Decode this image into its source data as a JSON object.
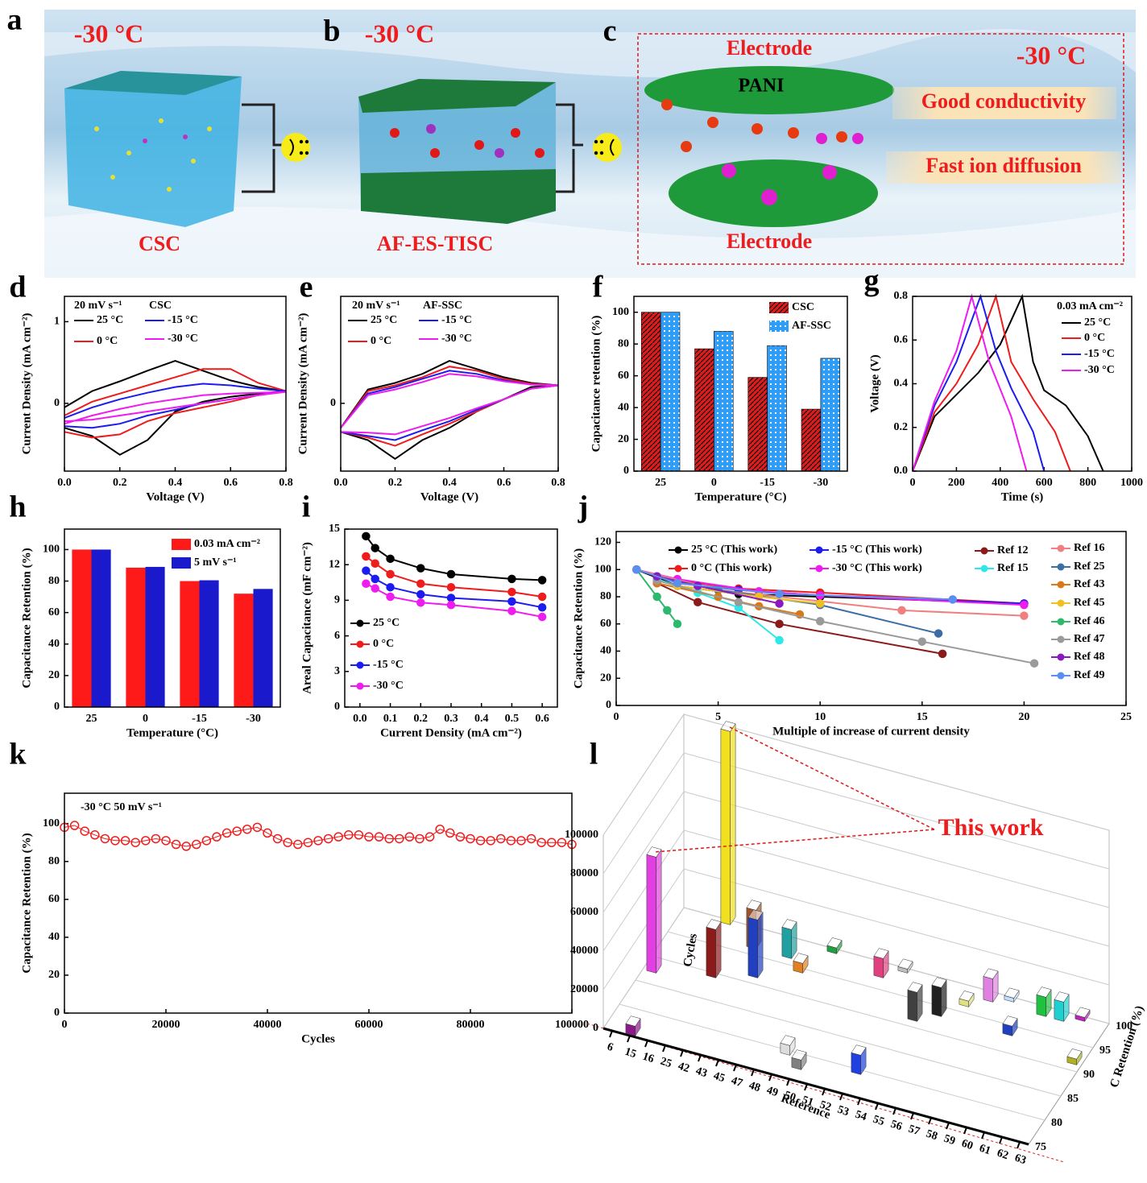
{
  "panel_labels": [
    "a",
    "b",
    "c",
    "d",
    "e",
    "f",
    "g",
    "h",
    "i",
    "j",
    "k",
    "l"
  ],
  "illustration": {
    "a": {
      "temperature": "-30 °C",
      "label": "CSC"
    },
    "b": {
      "temperature": "-30 °C",
      "label": "AF-ES-TISC"
    },
    "c": {
      "top_electrode": "Electrode",
      "polymer": "PANI",
      "temperature": "-30 °C",
      "feature_1": "Good conductivity",
      "feature_2": "Fast ion diffusion",
      "bottom_electrode": "Electrode"
    }
  },
  "chart_data": [
    {
      "type": "line",
      "x_label": "Voltage (V)",
      "y_label": "Current Density (mA cm⁻²)",
      "annotations": [
        "20 mV s⁻¹",
        "CSC"
      ],
      "x": [
        0,
        0.1,
        0.2,
        0.3,
        0.4,
        0.5,
        0.6,
        0.7,
        0.8,
        0.7,
        0.6,
        0.5,
        0.4,
        0.3,
        0.2,
        0.1,
        0
      ],
      "series": [
        {
          "name": "25 °C",
          "color": "#000000",
          "values": [
            -0.05,
            0.15,
            0.27,
            0.4,
            0.52,
            0.4,
            0.28,
            0.2,
            0.15,
            0.12,
            0.08,
            0.02,
            -0.1,
            -0.45,
            -0.63,
            -0.4,
            -0.3
          ]
        },
        {
          "name": "0 °C",
          "color": "#ee1c1c",
          "values": [
            -0.15,
            0.02,
            0.12,
            0.22,
            0.32,
            0.42,
            0.42,
            0.25,
            0.15,
            0.1,
            0.02,
            -0.05,
            -0.12,
            -0.22,
            -0.38,
            -0.42,
            -0.35
          ]
        },
        {
          "name": "-15 °C",
          "color": "#1c1cee",
          "values": [
            -0.18,
            -0.05,
            0.05,
            0.13,
            0.2,
            0.24,
            0.22,
            0.18,
            0.15,
            0.1,
            0.05,
            0,
            -0.08,
            -0.15,
            -0.25,
            -0.3,
            -0.28
          ]
        },
        {
          "name": "-30 °C",
          "color": "#ee1cee",
          "values": [
            -0.25,
            -0.15,
            -0.07,
            0,
            0.05,
            0.1,
            0.12,
            0.13,
            0.14,
            0.1,
            0.05,
            0,
            -0.05,
            -0.1,
            -0.15,
            -0.2,
            -0.22
          ]
        }
      ],
      "xlim": [
        0,
        0.8
      ],
      "xticks": [
        {
          "value": 0,
          "label": "0.0"
        },
        0.2,
        0.4,
        0.6,
        0.8
      ],
      "ylim": [
        -0.83,
        1.31
      ],
      "yticks": [
        0,
        1
      ]
    },
    {
      "type": "line",
      "x_label": "Voltage (V)",
      "y_label": "Current Density (mA cm⁻²)",
      "annotations": [
        "20 mV s⁻¹",
        "AF-SSC"
      ],
      "x": [
        0,
        0.1,
        0.2,
        0.3,
        0.4,
        0.5,
        0.6,
        0.7,
        0.8,
        0.7,
        0.6,
        0.5,
        0.4,
        0.3,
        0.2,
        0.1,
        0
      ],
      "series": [
        {
          "name": "25 °C",
          "color": "#000000",
          "values": [
            -0.3,
            0.17,
            0.25,
            0.36,
            0.52,
            0.42,
            0.32,
            0.25,
            0.22,
            0.2,
            0.05,
            -0.1,
            -0.3,
            -0.45,
            -0.68,
            -0.45,
            -0.35
          ]
        },
        {
          "name": "0 °C",
          "color": "#ee1c1c",
          "values": [
            -0.3,
            0.15,
            0.22,
            0.32,
            0.45,
            0.4,
            0.3,
            0.24,
            0.22,
            0.18,
            0.05,
            -0.1,
            -0.25,
            -0.38,
            -0.52,
            -0.42,
            -0.35
          ]
        },
        {
          "name": "-15 °C",
          "color": "#1c1cee",
          "values": [
            -0.3,
            0.12,
            0.2,
            0.3,
            0.4,
            0.36,
            0.28,
            0.23,
            0.22,
            0.18,
            0.05,
            -0.08,
            -0.22,
            -0.33,
            -0.45,
            -0.4,
            -0.35
          ]
        },
        {
          "name": "-30 °C",
          "color": "#ee1cee",
          "values": [
            -0.3,
            0.1,
            0.17,
            0.26,
            0.36,
            0.33,
            0.27,
            0.23,
            0.22,
            0.18,
            0.05,
            -0.06,
            -0.18,
            -0.28,
            -0.38,
            -0.36,
            -0.35
          ]
        }
      ],
      "xlim": [
        0,
        0.8
      ],
      "xticks": [
        {
          "value": 0,
          "label": "0.0"
        },
        0.2,
        0.4,
        0.6,
        0.8
      ],
      "ylim": [
        -0.83,
        1.31
      ],
      "yticks": [
        0
      ]
    },
    {
      "type": "bar",
      "x_label": "Temperature (°C)",
      "y_label": "Capacitance retention (%)",
      "hatch": true,
      "categories": [
        "25",
        "0",
        "-15",
        "-30"
      ],
      "series": [
        {
          "name": "CSC",
          "color": "#d81e1e",
          "values": [
            100,
            77,
            59,
            39
          ]
        },
        {
          "name": "AF-SSC",
          "color": "#2f9cf5",
          "values": [
            100,
            88,
            79,
            71
          ]
        }
      ],
      "ylim": [
        0,
        110
      ],
      "yticks": [
        0,
        20,
        40,
        60,
        80,
        100
      ]
    },
    {
      "type": "line",
      "x_label": "Time (s)",
      "y_label": "Voltage (V)",
      "legend_title": "0.03 mA cm⁻²",
      "series": [
        {
          "name": "25 °C",
          "color": "#000000",
          "x": [
            0,
            100,
            200,
            300,
            400,
            500,
            550,
            600,
            700,
            800,
            870
          ],
          "values": [
            0,
            0.25,
            0.35,
            0.45,
            0.58,
            0.8,
            0.5,
            0.37,
            0.3,
            0.16,
            0
          ]
        },
        {
          "name": "0 °C",
          "color": "#ee1c1c",
          "x": [
            0,
            100,
            200,
            300,
            380,
            450,
            550,
            650,
            720
          ],
          "values": [
            0,
            0.27,
            0.4,
            0.58,
            0.8,
            0.5,
            0.33,
            0.18,
            0
          ]
        },
        {
          "name": "-15 °C",
          "color": "#1c1cee",
          "x": [
            0,
            100,
            200,
            310,
            380,
            450,
            550,
            600
          ],
          "values": [
            0,
            0.3,
            0.5,
            0.8,
            0.55,
            0.38,
            0.18,
            0
          ]
        },
        {
          "name": "-30 °C",
          "color": "#ee1cee",
          "x": [
            0,
            100,
            200,
            270,
            350,
            450,
            520
          ],
          "values": [
            0,
            0.32,
            0.55,
            0.8,
            0.5,
            0.25,
            0
          ]
        }
      ],
      "xlim": [
        0,
        1000
      ],
      "xticks": [
        0,
        200,
        400,
        600,
        800,
        1000
      ],
      "ylim": [
        0,
        0.8
      ],
      "yticks": [
        {
          "value": 0,
          "label": "0.0"
        },
        0.2,
        0.4,
        0.6,
        0.8
      ]
    },
    {
      "type": "bar",
      "x_label": "Temperature (°C)",
      "y_label": "Capacitance Retention (%)",
      "categories": [
        "25",
        "0",
        "-15",
        "-30"
      ],
      "series": [
        {
          "name": "0.03 mA cm⁻²",
          "color": "#ff1a1a",
          "values": [
            100,
            88.5,
            80,
            72
          ]
        },
        {
          "name": "5 mV s⁻¹",
          "color": "#1a1acc",
          "values": [
            100,
            89,
            80.5,
            75
          ]
        }
      ],
      "ylim": [
        0,
        113
      ],
      "yticks": [
        0,
        20,
        40,
        60,
        80,
        100
      ]
    },
    {
      "type": "line",
      "x_label": "Current Density (mA cm⁻²)",
      "y_label": "Areal Capacitance (mF cm⁻²)",
      "markers": "filled",
      "x": [
        0.02,
        0.05,
        0.1,
        0.2,
        0.3,
        0.5,
        0.6
      ],
      "series": [
        {
          "name": "25 °C",
          "color": "#000000",
          "values": [
            14.4,
            13.4,
            12.5,
            11.7,
            11.2,
            10.8,
            10.7
          ]
        },
        {
          "name": "0 °C",
          "color": "#ee1c1c",
          "values": [
            12.7,
            12.1,
            11.2,
            10.4,
            10.1,
            9.7,
            9.3
          ]
        },
        {
          "name": "-15 °C",
          "color": "#1c1cee",
          "values": [
            11.5,
            10.8,
            10.1,
            9.5,
            9.2,
            8.9,
            8.4
          ]
        },
        {
          "name": "-30 °C",
          "color": "#ee1cee",
          "values": [
            10.4,
            10.0,
            9.3,
            8.8,
            8.6,
            8.1,
            7.6
          ]
        }
      ],
      "xlim": [
        -0.05,
        0.65
      ],
      "xticks": [
        {
          "value": 0,
          "label": "0.0"
        },
        0.1,
        0.2,
        0.3,
        0.4,
        0.5,
        0.6
      ],
      "ylim": [
        0,
        15
      ],
      "yticks": [
        0,
        3,
        6,
        9,
        12,
        15
      ]
    },
    {
      "type": "line",
      "x_label": "Multiple of increase of current density",
      "y_label": "Capacitance Retention (%)",
      "markers": "filled",
      "series": [
        {
          "name": "25 °C (This work)",
          "color": "#000000",
          "x": [
            1,
            3,
            6,
            10,
            20
          ],
          "values": [
            100,
            88,
            82,
            80,
            75
          ]
        },
        {
          "name": "0 °C (This work)",
          "color": "#ee1c1c",
          "x": [
            1,
            3,
            6,
            10,
            20
          ],
          "values": [
            100,
            92,
            86,
            83,
            75
          ]
        },
        {
          "name": "-15 °C (This work)",
          "color": "#1c1cee",
          "x": [
            1,
            3,
            6,
            10,
            20
          ],
          "values": [
            100,
            90,
            85,
            81,
            75
          ]
        },
        {
          "name": "-30 °C (This work)",
          "color": "#ee1cee",
          "x": [
            1,
            3,
            7,
            10,
            20
          ],
          "values": [
            100,
            93,
            84,
            81,
            74
          ]
        },
        {
          "name": "Ref 12",
          "color": "#8b1a1a",
          "x": [
            2,
            4,
            8,
            16
          ],
          "values": [
            90,
            76,
            60,
            38
          ]
        },
        {
          "name": "Ref 15",
          "color": "#2ee8e8",
          "x": [
            2,
            4,
            6,
            8
          ],
          "values": [
            93,
            83,
            72,
            48
          ]
        },
        {
          "name": "Ref 16",
          "color": "#f08080",
          "x": [
            1,
            5,
            14,
            20
          ],
          "values": [
            100,
            85,
            70,
            66
          ]
        },
        {
          "name": "Ref 25",
          "color": "#3a6ea5",
          "x": [
            2,
            5,
            10,
            15.8
          ],
          "values": [
            95,
            85,
            74,
            53
          ]
        },
        {
          "name": "Ref 43",
          "color": "#d87a1a",
          "x": [
            2,
            5,
            7,
            9
          ],
          "values": [
            90,
            80,
            73,
            67
          ]
        },
        {
          "name": "Ref 45",
          "color": "#f0c020",
          "x": [
            3,
            7,
            10
          ],
          "values": [
            88,
            80,
            75
          ]
        },
        {
          "name": "Ref 46",
          "color": "#2eb86e",
          "x": [
            1,
            2,
            2.5,
            3
          ],
          "values": [
            100,
            80,
            70,
            60
          ]
        },
        {
          "name": "Ref 47",
          "color": "#9a9a9a",
          "x": [
            2,
            6,
            10,
            15,
            20.5
          ],
          "values": [
            92,
            76,
            62,
            47,
            31
          ]
        },
        {
          "name": "Ref 48",
          "color": "#8a1ac0",
          "x": [
            2,
            4,
            8
          ],
          "values": [
            95,
            88,
            75
          ]
        },
        {
          "name": "Ref 49",
          "color": "#5a8ef0",
          "x": [
            1,
            3,
            8,
            16.5
          ],
          "values": [
            100,
            90,
            82,
            78
          ]
        }
      ],
      "xlim": [
        0,
        25
      ],
      "xticks": [
        0,
        5,
        10,
        15,
        20,
        25
      ],
      "ylim": [
        0,
        128
      ],
      "yticks": [
        0,
        20,
        40,
        60,
        80,
        100,
        120
      ]
    },
    {
      "type": "line",
      "x_label": "Cycles",
      "y_label": "Capacitance Retention (%)",
      "annotations": [
        "-30 °C 50 mV s⁻¹"
      ],
      "markers": "open",
      "x": [
        0,
        2000,
        4000,
        6000,
        8000,
        10000,
        12000,
        14000,
        16000,
        18000,
        20000,
        22000,
        24000,
        26000,
        28000,
        30000,
        32000,
        34000,
        36000,
        38000,
        40000,
        42000,
        44000,
        46000,
        48000,
        50000,
        52000,
        54000,
        56000,
        58000,
        60000,
        62000,
        64000,
        66000,
        68000,
        70000,
        72000,
        74000,
        76000,
        78000,
        80000,
        82000,
        84000,
        86000,
        88000,
        90000,
        92000,
        94000,
        96000,
        98000,
        100000
      ],
      "series": [
        {
          "name": "-30 °C",
          "color": "#ee1c1c",
          "values": [
            98,
            99,
            96,
            94,
            92,
            91,
            91,
            90,
            91,
            92,
            91,
            89,
            88,
            89,
            91,
            93,
            95,
            96,
            97,
            98,
            95,
            92,
            90,
            89,
            90,
            91,
            92,
            93,
            94,
            94,
            93,
            93,
            92,
            92,
            93,
            92,
            93,
            97,
            95,
            93,
            92,
            91,
            91,
            92,
            91,
            91,
            92,
            90,
            90,
            90,
            89
          ]
        }
      ],
      "xlim": [
        0,
        100000
      ],
      "xticks": [
        0,
        20000,
        40000,
        60000,
        80000,
        100000
      ],
      "ylim": [
        0,
        116
      ],
      "yticks": [
        0,
        20,
        40,
        60,
        80,
        100
      ]
    },
    {
      "type": "bar3d",
      "x_label": "Reference",
      "y_label": "Cycles",
      "z_label": "C Retention (%)",
      "annotation": "This work",
      "categories": [
        "6",
        "15",
        "16",
        "25",
        "42",
        "43",
        "45",
        "47",
        "48",
        "49",
        "50",
        "51",
        "52",
        "53",
        "54",
        "55",
        "56",
        "57",
        "58",
        "59",
        "60",
        "61",
        "62",
        "63"
      ],
      "values": [
        60000,
        5000,
        100000,
        25000,
        20000,
        30000,
        15000,
        5000,
        3000,
        5000,
        5000,
        10000,
        2000,
        10000,
        15000,
        15000,
        3000,
        12000,
        2000,
        5000,
        10000,
        10000,
        2000,
        3000
      ],
      "retention": [
        88,
        76,
        100,
        90,
        97,
        92,
        97,
        95,
        100,
        80,
        78,
        98,
        100,
        80,
        92,
        94,
        97,
        99,
        100,
        94,
        99,
        99,
        100,
        92
      ],
      "colors": [
        "#e040e0",
        "#8b1a8b",
        "#f0e020",
        "#8b1a1a",
        "#a0522d",
        "#2040c0",
        "#20a0a0",
        "#e08020",
        "#20a040",
        "#dddddd",
        "#808080",
        "#e04080",
        "#c0c0c0",
        "#2040e0",
        "#404040",
        "#202020",
        "#e0e080",
        "#e080e0",
        "#c0e0ff",
        "#2040c0",
        "#20c040",
        "#20d0d0",
        "#c020c0",
        "#b0b020"
      ],
      "ylim": [
        0,
        100000
      ],
      "yticks": [
        0,
        20000,
        40000,
        60000,
        80000,
        100000
      ],
      "zlim": [
        75,
        100
      ],
      "zticks": [
        75,
        80,
        85,
        90,
        95,
        100
      ]
    }
  ]
}
